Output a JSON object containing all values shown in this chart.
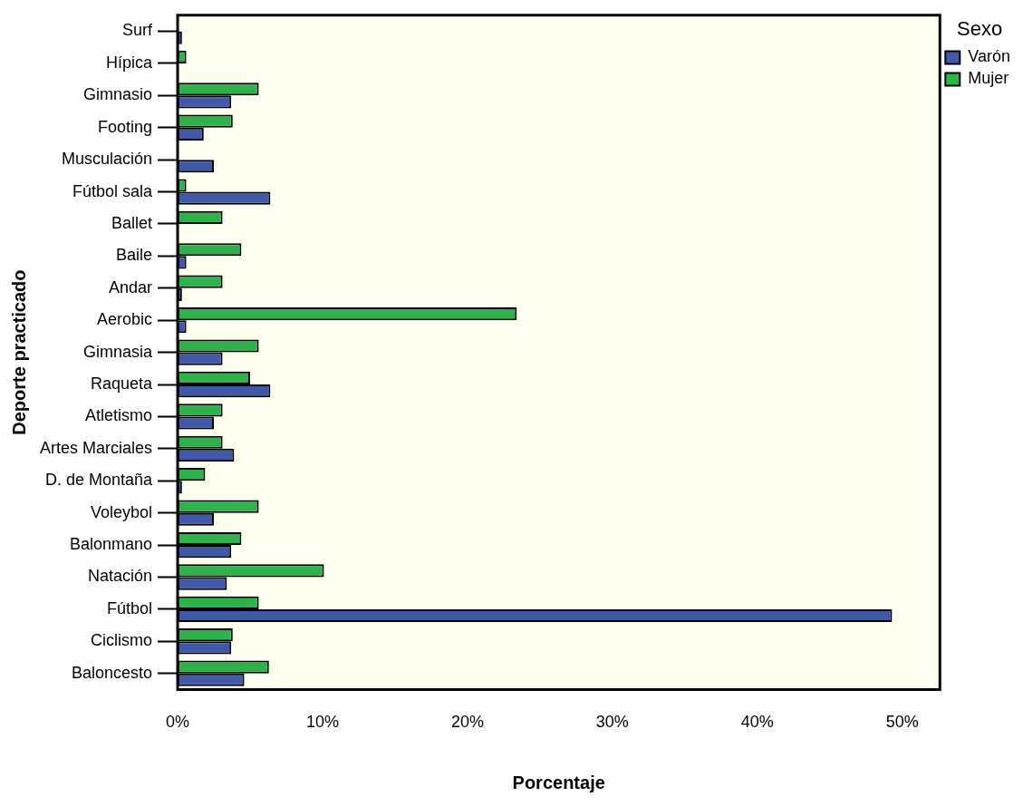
{
  "chart_data": {
    "type": "bar",
    "orientation": "horizontal",
    "xlabel": "Porcentaje",
    "ylabel": "Deporte practicado",
    "legend_title": "Sexo",
    "legend": "top right",
    "grid": false,
    "categories": [
      "Surf",
      "Hípica",
      "Gimnasio",
      "Footing",
      "Musculación",
      "Fútbol sala",
      "Ballet",
      "Baile",
      "Andar",
      "Aerobic",
      "Gimnasia",
      "Raqueta",
      "Atletismo",
      "Artes Marciales",
      "D. de Montaña",
      "Voleybol",
      "Balonmano",
      "Natación",
      "Fútbol",
      "Ciclismo",
      "Baloncesto"
    ],
    "series": [
      {
        "name": "Varón",
        "color": "#3f58a8",
        "values": [
          0.3,
          0,
          3.7,
          1.8,
          2.5,
          6.4,
          0,
          0.6,
          0.3,
          0.6,
          3.1,
          6.4,
          2.5,
          3.9,
          0.3,
          2.5,
          3.7,
          3.4,
          49.3,
          3.7,
          4.6
        ]
      },
      {
        "name": "Mujer",
        "color": "#2eb34a",
        "values": [
          0,
          0.6,
          5.6,
          3.8,
          0,
          0.6,
          3.1,
          4.4,
          3.1,
          23.4,
          5.6,
          5.0,
          3.1,
          3.1,
          1.9,
          5.6,
          4.4,
          10.1,
          5.6,
          3.8,
          6.3
        ]
      }
    ],
    "xlim": [
      0,
      52.6
    ],
    "xticks": [
      {
        "value": 0,
        "label": "0%"
      },
      {
        "value": 10,
        "label": "10%"
      },
      {
        "value": 20,
        "label": "20%"
      },
      {
        "value": 30,
        "label": "30%"
      },
      {
        "value": 40,
        "label": "40%"
      },
      {
        "value": 50,
        "label": "50%"
      }
    ]
  }
}
